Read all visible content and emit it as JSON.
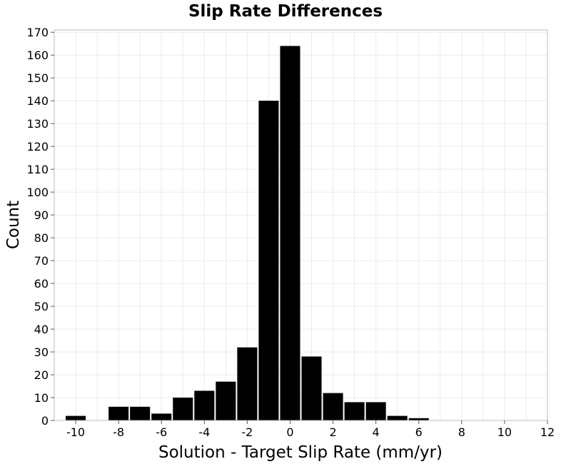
{
  "chart_data": {
    "type": "bar",
    "title": "Slip Rate Differences",
    "xlabel": "Solution - Target Slip Rate (mm/yr)",
    "ylabel": "Count",
    "xlim": [
      -11,
      12
    ],
    "ylim": [
      0,
      171
    ],
    "xticks": [
      -10,
      -8,
      -6,
      -4,
      -2,
      0,
      2,
      4,
      6,
      8,
      10,
      12
    ],
    "yticks": [
      0,
      10,
      20,
      30,
      40,
      50,
      60,
      70,
      80,
      90,
      100,
      110,
      120,
      130,
      140,
      150,
      160,
      170
    ],
    "bin_width": 1,
    "x": [
      -10,
      -9,
      -8,
      -7,
      -6,
      -5,
      -4,
      -3,
      -2,
      -1,
      0,
      1,
      2,
      3,
      4,
      5,
      6,
      7,
      8,
      9,
      10,
      11
    ],
    "values": [
      2,
      0,
      6,
      6,
      3,
      10,
      13,
      17,
      32,
      140,
      164,
      28,
      12,
      8,
      8,
      2,
      1,
      0,
      0,
      0,
      0,
      0
    ],
    "grid": true,
    "bar_color": "#000000",
    "grid_color": "#ebebeb"
  }
}
